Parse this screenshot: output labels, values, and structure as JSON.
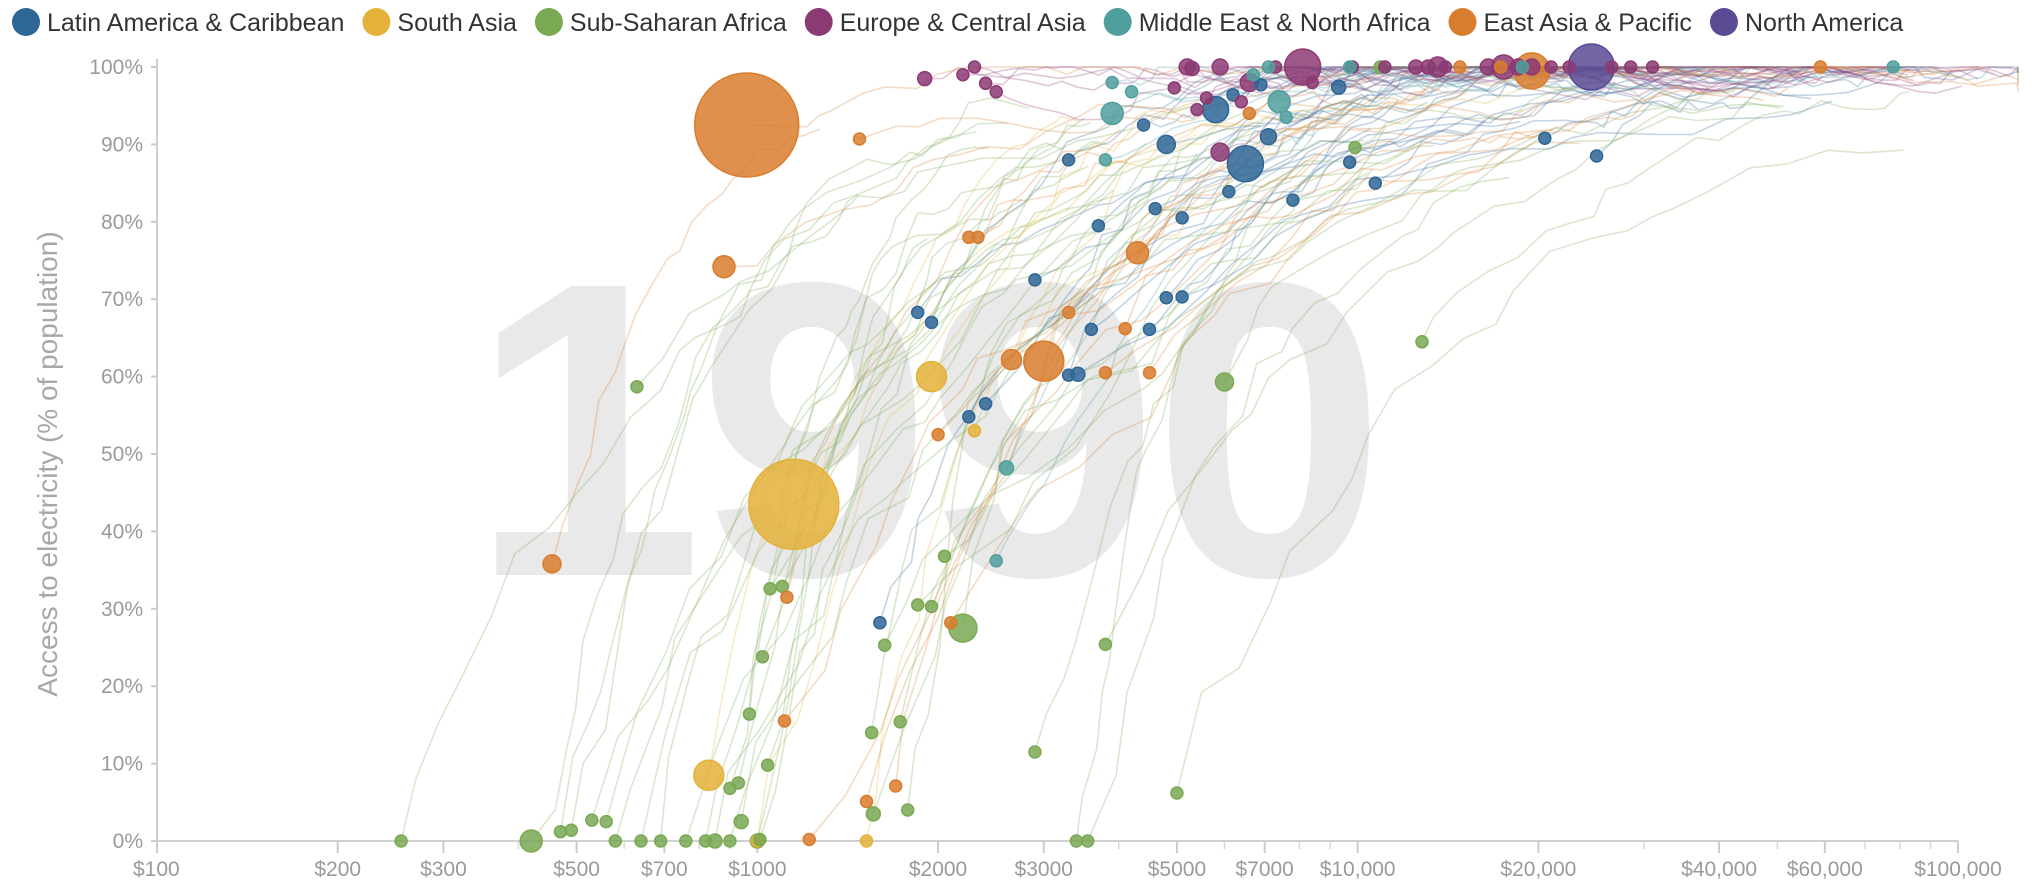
{
  "chart_data": {
    "type": "scatter",
    "title": "",
    "year": "1990",
    "xlabel": "",
    "ylabel": "Access to electricity (% of population)",
    "xscale": "log",
    "xlim": [
      100,
      100000
    ],
    "ylim": [
      0,
      100
    ],
    "x_ticks": [
      100,
      200,
      300,
      500,
      700,
      1000,
      2000,
      3000,
      5000,
      7000,
      10000,
      20000,
      40000,
      60000,
      100000
    ],
    "x_tick_labels": [
      "$100",
      "$200",
      "$300",
      "$500",
      "$700",
      "$1000",
      "$2000",
      "$3000",
      "$5000",
      "$7000",
      "$10,000",
      "$20,000",
      "$40,000",
      "$60,000",
      "$100,000"
    ],
    "y_ticks": [
      0,
      10,
      20,
      30,
      40,
      50,
      60,
      70,
      80,
      90,
      100
    ],
    "y_tick_labels": [
      "0%",
      "10%",
      "20%",
      "30%",
      "40%",
      "50%",
      "60%",
      "70%",
      "80%",
      "90%",
      "100%"
    ],
    "legend_placement": "top",
    "series": [
      {
        "name": "Latin America & Caribbean",
        "color": "#2e6696",
        "points": [
          [
            6500,
            87.5,
            18
          ],
          [
            5800,
            94.5,
            13
          ],
          [
            4800,
            90,
            9
          ],
          [
            3700,
            79.5,
            6
          ],
          [
            2900,
            72.5,
            6
          ],
          [
            1850,
            68.3,
            6
          ],
          [
            1950,
            67,
            6
          ],
          [
            3600,
            66.1,
            6
          ],
          [
            3300,
            60.2,
            6
          ],
          [
            3420,
            60.3,
            7
          ],
          [
            2400,
            56.5,
            6
          ],
          [
            2250,
            54.8,
            6
          ],
          [
            1600,
            28.2,
            6
          ],
          [
            4500,
            66.1,
            6
          ],
          [
            4800,
            70.2,
            6
          ],
          [
            5100,
            70.3,
            6
          ],
          [
            4600,
            81.7,
            6
          ],
          [
            5100,
            80.5,
            6
          ],
          [
            6100,
            83.9,
            6
          ],
          [
            7800,
            82.8,
            6
          ],
          [
            7100,
            91,
            8
          ],
          [
            10700,
            85,
            6
          ],
          [
            9700,
            87.7,
            6
          ],
          [
            20500,
            90.8,
            6
          ],
          [
            25000,
            88.5,
            6
          ],
          [
            9300,
            97.4,
            7
          ],
          [
            6900,
            97.7,
            6
          ],
          [
            4400,
            92.5,
            6
          ],
          [
            3300,
            88,
            6
          ],
          [
            6200,
            96.4,
            6
          ]
        ]
      },
      {
        "name": "South Asia",
        "color": "#e4b23a",
        "points": [
          [
            1150,
            43.5,
            45
          ],
          [
            1950,
            60,
            15
          ],
          [
            830,
            8.5,
            15
          ],
          [
            2300,
            53,
            6
          ],
          [
            1000,
            0,
            6
          ],
          [
            1520,
            0,
            6
          ]
        ]
      },
      {
        "name": "Sub-Saharan Africa",
        "color": "#7aa853",
        "points": [
          [
            2200,
            27.5,
            14
          ],
          [
            6000,
            59.3,
            9
          ],
          [
            630,
            58.7,
            6
          ],
          [
            12800,
            64.5,
            6
          ],
          [
            420,
            0,
            11
          ],
          [
            1050,
            32.6,
            6
          ],
          [
            1100,
            32.9,
            6
          ],
          [
            1950,
            30.3,
            6
          ],
          [
            1850,
            30.5,
            6
          ],
          [
            1630,
            25.3,
            6
          ],
          [
            2050,
            36.8,
            6
          ],
          [
            1020,
            23.8,
            6
          ],
          [
            2900,
            11.5,
            6
          ],
          [
            3800,
            25.4,
            6
          ],
          [
            970,
            16.4,
            6
          ],
          [
            1730,
            15.4,
            6
          ],
          [
            1550,
            14,
            6
          ],
          [
            1040,
            9.8,
            6
          ],
          [
            930,
            7.5,
            6
          ],
          [
            900,
            6.8,
            6
          ],
          [
            1560,
            3.5,
            7
          ],
          [
            1780,
            4,
            6
          ],
          [
            5000,
            6.2,
            6
          ],
          [
            940,
            2.5,
            7
          ],
          [
            1000,
            0,
            7
          ],
          [
            900,
            0,
            6
          ],
          [
            820,
            0,
            6
          ],
          [
            760,
            0,
            6
          ],
          [
            640,
            0,
            6
          ],
          [
            580,
            0,
            6
          ],
          [
            560,
            2.5,
            6
          ],
          [
            530,
            2.7,
            6
          ],
          [
            490,
            1.4,
            6
          ],
          [
            470,
            1.2,
            6
          ],
          [
            255,
            0,
            6
          ],
          [
            850,
            0,
            7
          ],
          [
            690,
            0,
            6
          ],
          [
            1010,
            0.2,
            6
          ],
          [
            3400,
            0,
            6
          ],
          [
            3550,
            0,
            6
          ],
          [
            9900,
            89.6,
            6
          ],
          [
            10900,
            100,
            6
          ]
        ]
      },
      {
        "name": "Europe & Central Asia",
        "color": "#8c3a73",
        "points": [
          [
            8100,
            100,
            18
          ],
          [
            17500,
            100,
            12
          ],
          [
            13600,
            100,
            10
          ],
          [
            6600,
            98,
            9
          ],
          [
            5900,
            89,
            9
          ],
          [
            5900,
            100,
            8
          ],
          [
            5200,
            100,
            8
          ],
          [
            16500,
            100,
            8
          ],
          [
            18500,
            100,
            8
          ],
          [
            19500,
            100,
            8
          ],
          [
            12500,
            100,
            7
          ],
          [
            13100,
            100,
            7
          ],
          [
            11100,
            100,
            6
          ],
          [
            9800,
            100,
            6
          ],
          [
            21000,
            100,
            6
          ],
          [
            22500,
            100,
            6
          ],
          [
            26500,
            100,
            6
          ],
          [
            28500,
            100,
            6
          ],
          [
            31000,
            100,
            6
          ],
          [
            2300,
            100,
            6
          ],
          [
            1900,
            98.5,
            7
          ],
          [
            2200,
            99,
            6
          ],
          [
            2500,
            96.8,
            6
          ],
          [
            2400,
            97.9,
            6
          ],
          [
            5300,
            99.8,
            7
          ],
          [
            5600,
            96,
            6
          ],
          [
            7300,
            100,
            6
          ],
          [
            8400,
            98,
            6
          ],
          [
            6400,
            95.5,
            6
          ],
          [
            14000,
            100,
            6
          ],
          [
            5400,
            94.5,
            6
          ],
          [
            4950,
            97.3,
            6
          ]
        ]
      },
      {
        "name": "Middle East & North Africa",
        "color": "#4f9f9d",
        "points": [
          [
            3900,
            94,
            11
          ],
          [
            7400,
            95.5,
            11
          ],
          [
            3900,
            98,
            6
          ],
          [
            4200,
            96.8,
            6
          ],
          [
            7600,
            93.5,
            6
          ],
          [
            6700,
            99,
            6
          ],
          [
            9700,
            100,
            6
          ],
          [
            3800,
            88,
            6
          ],
          [
            2600,
            48.2,
            7
          ],
          [
            2500,
            36.2,
            6
          ],
          [
            78000,
            100,
            6
          ],
          [
            18800,
            100,
            6
          ],
          [
            7100,
            100,
            6
          ]
        ]
      },
      {
        "name": "East Asia & Pacific",
        "color": "#d87d2d",
        "points": [
          [
            960,
            92.5,
            52
          ],
          [
            3000,
            62,
            20
          ],
          [
            19500,
            99.5,
            18
          ],
          [
            880,
            74.2,
            11
          ],
          [
            4300,
            76,
            11
          ],
          [
            2650,
            62.2,
            10
          ],
          [
            455,
            35.8,
            9
          ],
          [
            1480,
            90.7,
            6
          ],
          [
            2250,
            78,
            6
          ],
          [
            2330,
            78,
            6
          ],
          [
            3300,
            68.3,
            6
          ],
          [
            3800,
            60.5,
            6
          ],
          [
            2000,
            52.5,
            6
          ],
          [
            1120,
            31.5,
            6
          ],
          [
            2100,
            28.2,
            6
          ],
          [
            1110,
            15.5,
            6
          ],
          [
            1700,
            7.1,
            6
          ],
          [
            1520,
            5.1,
            6
          ],
          [
            1220,
            0.2,
            6
          ],
          [
            17300,
            100,
            6
          ],
          [
            59000,
            100,
            6
          ],
          [
            6600,
            94,
            6
          ],
          [
            4100,
            66.2,
            6
          ],
          [
            4500,
            60.5,
            6
          ],
          [
            14800,
            100,
            6
          ]
        ]
      },
      {
        "name": "North America",
        "color": "#5b4a94",
        "points": [
          [
            24500,
            100,
            23
          ]
        ]
      }
    ]
  }
}
